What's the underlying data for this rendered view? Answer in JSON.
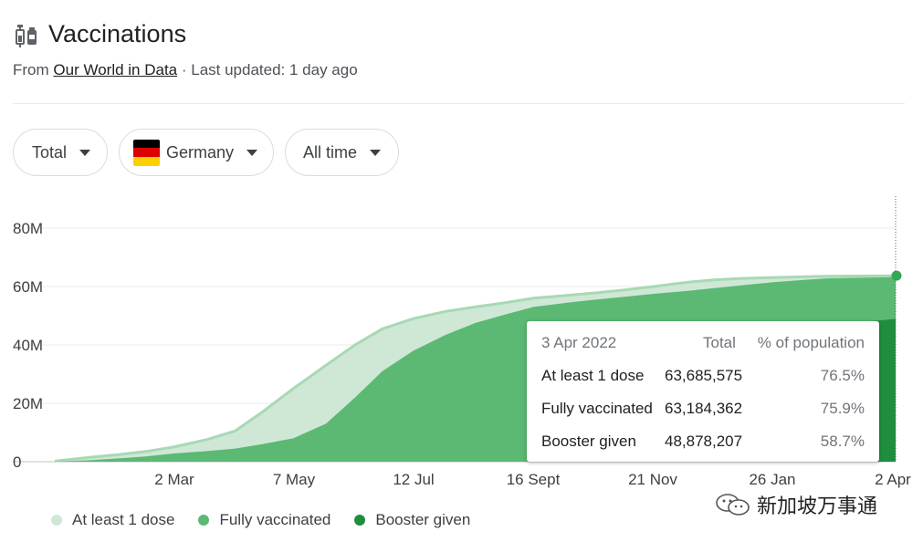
{
  "header": {
    "title": "Vaccinations",
    "from_label": "From",
    "source_link": "Our World in Data",
    "updated": " · Last updated: 1 day ago"
  },
  "filters": {
    "metric": "Total",
    "country": "Germany",
    "range": "All time"
  },
  "tooltip": {
    "date": "3 Apr 2022",
    "col_total": "Total",
    "col_pct": "% of population",
    "rows": [
      {
        "label": "At least 1 dose",
        "total": "63,685,575",
        "pct": "76.5%"
      },
      {
        "label": "Fully vaccinated",
        "total": "63,184,362",
        "pct": "75.9%"
      },
      {
        "label": "Booster given",
        "total": "48,878,207",
        "pct": "58.7%"
      }
    ]
  },
  "watermark": "新加坡万事通",
  "colors": {
    "at_least_one": "#cfe8d6",
    "fully": "#5bb973",
    "booster": "#1e8e3e",
    "legend_light": "#cfe8d6"
  },
  "chart_data": {
    "type": "area",
    "ylim": [
      0,
      80000000
    ],
    "y_ticks": [
      "0",
      "20M",
      "40M",
      "60M",
      "80M"
    ],
    "x_ticks": [
      "2 Mar",
      "7 May",
      "12 Jul",
      "16 Sept",
      "21 Nov",
      "26 Jan",
      "2 Apr"
    ],
    "legend": [
      "At least 1 dose",
      "Fully vaccinated",
      "Booster given"
    ],
    "x": [
      "2020-12-27",
      "2021-01-15",
      "2021-02-01",
      "2021-02-15",
      "2021-03-02",
      "2021-03-20",
      "2021-04-05",
      "2021-04-20",
      "2021-05-07",
      "2021-05-25",
      "2021-06-10",
      "2021-06-25",
      "2021-07-12",
      "2021-07-30",
      "2021-08-15",
      "2021-09-01",
      "2021-09-16",
      "2021-10-05",
      "2021-10-20",
      "2021-11-05",
      "2021-11-21",
      "2021-12-10",
      "2021-12-25",
      "2022-01-10",
      "2022-01-26",
      "2022-02-10",
      "2022-02-25",
      "2022-03-15",
      "2022-04-03"
    ],
    "series": [
      {
        "name": "At least 1 dose",
        "values": [
          0.2,
          1.5,
          2.5,
          3.5,
          5.0,
          7.5,
          10.5,
          17.0,
          25.0,
          33.0,
          40.0,
          45.5,
          49.0,
          51.5,
          53.0,
          54.5,
          56.0,
          57.0,
          57.8,
          58.8,
          60.0,
          61.5,
          62.3,
          62.8,
          63.1,
          63.3,
          63.5,
          63.6,
          63.7
        ]
      },
      {
        "name": "Fully vaccinated",
        "values": [
          0.0,
          0.5,
          1.2,
          1.8,
          2.8,
          3.6,
          4.5,
          6.0,
          8.0,
          13.0,
          22.0,
          31.0,
          38.0,
          43.5,
          47.5,
          50.5,
          53.0,
          54.5,
          55.5,
          56.5,
          57.5,
          58.5,
          59.5,
          60.5,
          61.5,
          62.2,
          62.8,
          63.0,
          63.2
        ]
      },
      {
        "name": "Booster given",
        "values": [
          0,
          0,
          0,
          0,
          0,
          0,
          0,
          0,
          0,
          0,
          0,
          0,
          0,
          0,
          0,
          0,
          0,
          0,
          0.5,
          1.5,
          3.5,
          15.0,
          27.0,
          36.0,
          41.5,
          44.5,
          46.5,
          47.8,
          48.9
        ]
      }
    ],
    "value_unit": "millions"
  }
}
